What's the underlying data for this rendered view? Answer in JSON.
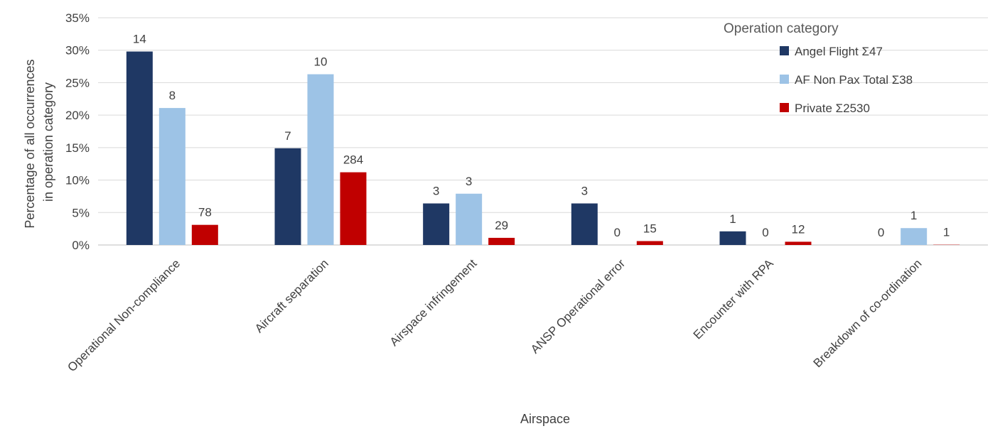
{
  "chart_data": {
    "type": "bar",
    "xlabel": "Airspace",
    "ylabel_lines": [
      "Percentage of all occurrences",
      "in operation category"
    ],
    "ylim": [
      0,
      0.35
    ],
    "yticks": [
      {
        "v": 0,
        "label": "0%"
      },
      {
        "v": 0.05,
        "label": "5%"
      },
      {
        "v": 0.1,
        "label": "10%"
      },
      {
        "v": 0.15,
        "label": "15%"
      },
      {
        "v": 0.2,
        "label": "20%"
      },
      {
        "v": 0.25,
        "label": "25%"
      },
      {
        "v": 0.3,
        "label": "30%"
      },
      {
        "v": 0.35,
        "label": "35%"
      }
    ],
    "grid": true,
    "categories": [
      "Operational Non-compliance",
      "Aircraft separation",
      "Airspace infringement",
      "ANSP Operational error",
      "Encounter with RPA",
      "Breakdown of co-ordination"
    ],
    "legend": {
      "title": "Operation category",
      "position": "top-right"
    },
    "series": [
      {
        "name": "Angel Flight Σ47",
        "color": "#1f3864",
        "values": [
          0.298,
          0.149,
          0.064,
          0.064,
          0.021,
          0.0
        ],
        "labels": [
          "14",
          "7",
          "3",
          "3",
          "1",
          "0"
        ]
      },
      {
        "name": "AF Non Pax Total Σ38",
        "color": "#9dc3e6",
        "values": [
          0.211,
          0.263,
          0.079,
          0.0,
          0.0,
          0.026
        ],
        "labels": [
          "8",
          "10",
          "3",
          "0",
          "0",
          "1"
        ]
      },
      {
        "name": "Private Σ2530",
        "color": "#c00000",
        "values": [
          0.031,
          0.112,
          0.011,
          0.006,
          0.005,
          0.0004
        ],
        "labels": [
          "78",
          "284",
          "29",
          "15",
          "12",
          "1"
        ]
      }
    ]
  }
}
